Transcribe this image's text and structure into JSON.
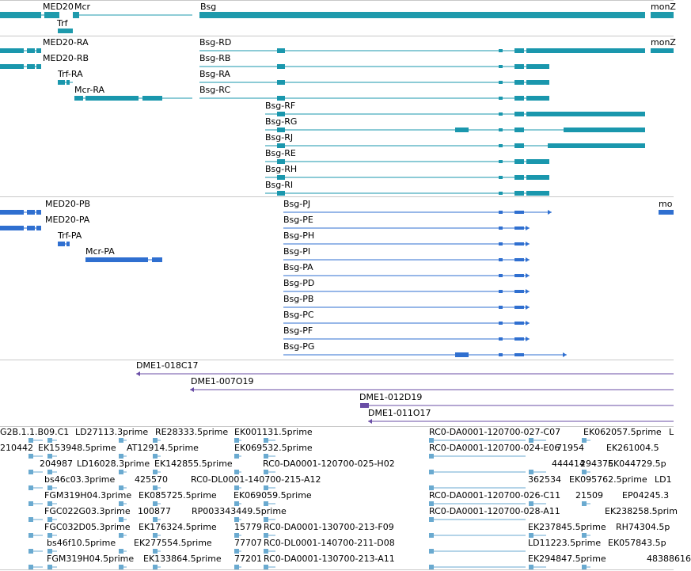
{
  "colors": {
    "gene": "#1e9aac",
    "transcript": "#1a97ad",
    "protein": "#2f6fd0",
    "bac": "#6a4ea6",
    "est": "#6aaad0",
    "divider": "#c8c8c8"
  },
  "tracks": {
    "genes": {
      "labels": [
        "MED20",
        "Mcr",
        "Bsg",
        "monZ",
        "Trf"
      ]
    },
    "transcripts": {
      "labels": [
        "MED20-RA",
        "MED20-RB",
        "Trf-RA",
        "Mcr-RA",
        "Bsg-RD",
        "Bsg-RB",
        "Bsg-RA",
        "Bsg-RC",
        "Bsg-RF",
        "Bsg-RG",
        "Bsg-RJ",
        "Bsg-RE",
        "Bsg-RH",
        "Bsg-RI",
        "monZ"
      ]
    },
    "proteins": {
      "labels": [
        "MED20-PB",
        "MED20-PA",
        "Trf-PA",
        "Mcr-PA",
        "Bsg-PJ",
        "Bsg-PE",
        "Bsg-PH",
        "Bsg-PI",
        "Bsg-PA",
        "Bsg-PD",
        "Bsg-PB",
        "Bsg-PC",
        "Bsg-PF",
        "Bsg-PG",
        "mo"
      ]
    },
    "bacs": {
      "labels": [
        "DME1-018C17",
        "DME1-007O19",
        "DME1-012D19",
        "DME1-011O17"
      ]
    },
    "ests": {
      "labels": [
        "G2B.1.1.B09.C1",
        "LD27113.3prime",
        "RE28333.5prime",
        "EK001131.5prime",
        "RC0-DA0001-120700-027-C07",
        "EK062057.5prime",
        "L",
        "210442",
        "EK153948.5prime",
        "AT12914.5prime",
        "EK069532.5prime",
        "RC0-DA0001-120700-024-E06",
        "71954",
        "EK261004.5",
        "204987",
        "LD16028.3prime",
        "EK142855.5prime",
        "RC0-DA0001-120700-025-H02",
        "444414",
        "294375",
        "EK044729.5p",
        "bs46c03.3prime",
        "425570",
        "RC0-DL0001-140700-215-A12",
        "362534",
        "EK095762.5prime",
        "LD1",
        "FGM319H04.3prime",
        "EK085725.5prime",
        "EK069059.5prime",
        "RC0-DA0001-120700-026-C11",
        "21509",
        "EP04245.3",
        "FGC022G03.3prime",
        "100877",
        "RP003343449.5prime",
        "RC0-DA0001-120700-028-A11",
        "EK238258.5prim",
        "FGC032D05.3prime",
        "EK176324.5prime",
        "15779",
        "RC0-DA0001-130700-213-F09",
        "EK237845.5prime",
        "RH74304.5p",
        "bs46f10.5prime",
        "EK277554.5prime",
        "77707",
        "RC0-DL0001-140700-211-D08",
        "LD11223.5prime",
        "EK057843.5p",
        "FGM319H04.5prime",
        "EK133864.5prime",
        "77201",
        "RC0-DA0001-130700-213-A11",
        "EK294847.5prime",
        "48388616"
      ]
    }
  }
}
